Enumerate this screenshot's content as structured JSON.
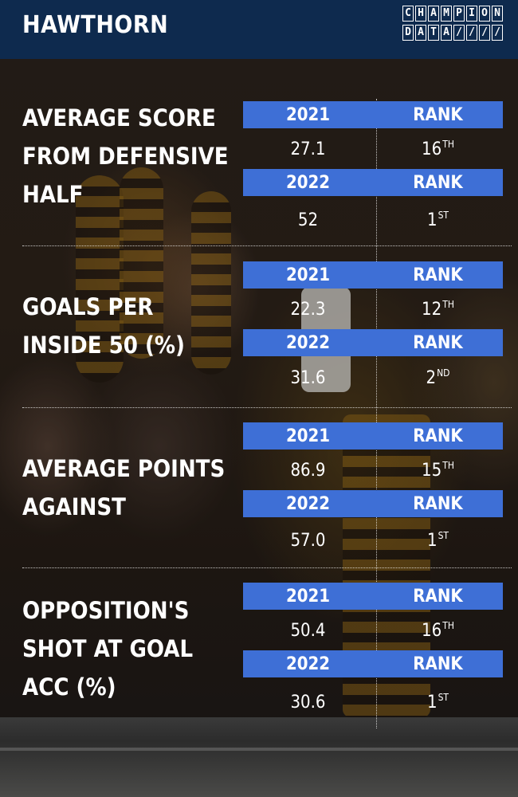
{
  "header": {
    "team": "HAWTHORN",
    "logo": [
      "CHAMPION",
      "DATA////"
    ]
  },
  "stats": [
    {
      "label": "AVERAGE SCORE\nFROM DEFENSIVE\nHALF",
      "rows": [
        {
          "year": "2021",
          "rank_header": "RANK",
          "value": "27.1",
          "rank": "16",
          "rank_suffix": "TH"
        },
        {
          "year": "2022",
          "rank_header": "RANK",
          "value": "52",
          "rank": "1",
          "rank_suffix": "ST"
        }
      ]
    },
    {
      "label": "GOALS PER\nINSIDE 50 (%)",
      "rows": [
        {
          "year": "2021",
          "rank_header": "RANK",
          "value": "22.3",
          "rank": "12",
          "rank_suffix": "TH"
        },
        {
          "year": "2022",
          "rank_header": "RANK",
          "value": "31.6",
          "rank": "2",
          "rank_suffix": "ND"
        }
      ]
    },
    {
      "label": "AVERAGE POINTS\nAGAINST",
      "rows": [
        {
          "year": "2021",
          "rank_header": "RANK",
          "value": "86.9",
          "rank": "15",
          "rank_suffix": "TH"
        },
        {
          "year": "2022",
          "rank_header": "RANK",
          "value": "57.0",
          "rank": "1",
          "rank_suffix": "ST"
        }
      ]
    },
    {
      "label": "OPPOSITION'S\nSHOT AT GOAL\nACC (%)",
      "rows": [
        {
          "year": "2021",
          "rank_header": "RANK",
          "value": "50.4",
          "rank": "16",
          "rank_suffix": "TH"
        },
        {
          "year": "2022",
          "rank_header": "RANK",
          "value": "30.6",
          "rank": "1",
          "rank_suffix": "ST"
        }
      ]
    }
  ]
}
